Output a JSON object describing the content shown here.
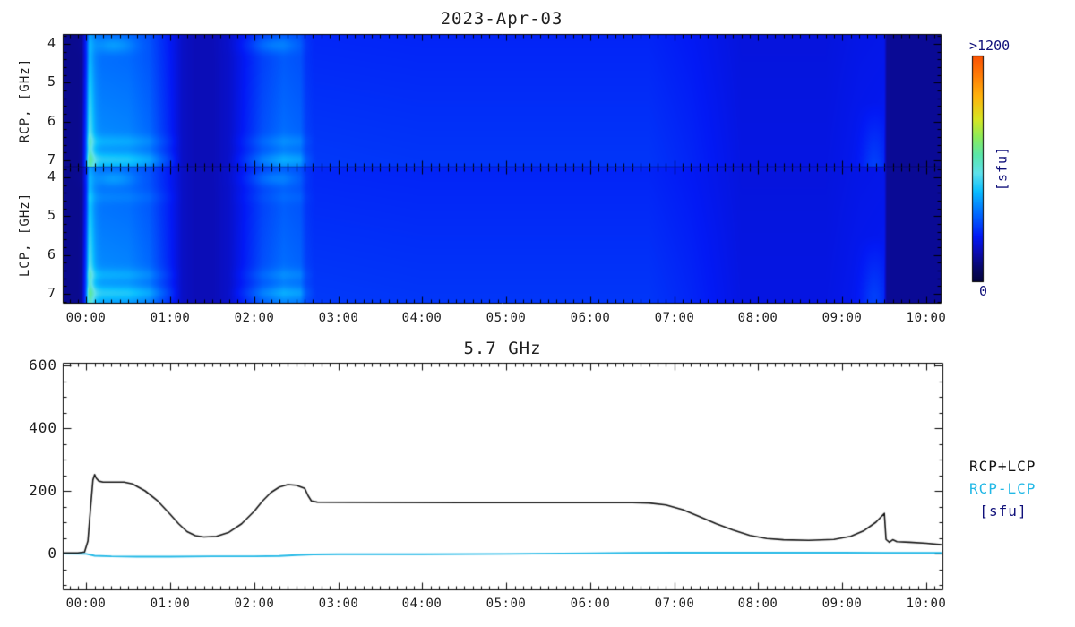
{
  "page": {
    "background": "#ffffff",
    "text_color": "#1f1f1f"
  },
  "chart_data": [
    {
      "type": "heatmap",
      "title": "2023-Apr-03",
      "description_visible": "dual-panel radio dynamic spectrum, RCP and LCP polarization, 4-7 GHz vs time",
      "panels": [
        {
          "ylabel": "RCP, [GHz]",
          "y_ticks": [
            4,
            5,
            6,
            7
          ],
          "y_range_ghz": [
            3.75,
            7.16
          ]
        },
        {
          "ylabel": "LCP, [GHz]",
          "y_ticks": [
            4,
            5,
            6,
            7
          ],
          "y_range_ghz": [
            3.75,
            7.23
          ]
        }
      ],
      "x_ticks": [
        {
          "hour": 0,
          "label": "00:00"
        },
        {
          "hour": 1,
          "label": "01:00"
        },
        {
          "hour": 2,
          "label": "02:00"
        },
        {
          "hour": 3,
          "label": "03:00"
        },
        {
          "hour": 4,
          "label": "04:00"
        },
        {
          "hour": 5,
          "label": "05:00"
        },
        {
          "hour": 6,
          "label": "06:00"
        },
        {
          "hour": 7,
          "label": "07:00"
        },
        {
          "hour": 8,
          "label": "08:00"
        },
        {
          "hour": 9,
          "label": "09:00"
        },
        {
          "hour": 10,
          "label": "10:00"
        }
      ],
      "x_range_hours": [
        -0.28,
        10.17
      ],
      "x_minor_step_hours": 0.1,
      "colorbar": {
        "max_label": ">1200",
        "min_label": "0",
        "title": "[sfu]",
        "label_color": "#10107a",
        "colormap_stops": [
          [
            0.0,
            [
              4,
              4,
              60
            ]
          ],
          [
            0.06,
            [
              8,
              8,
              105
            ]
          ],
          [
            0.13,
            [
              12,
              12,
              178
            ]
          ],
          [
            0.2,
            [
              2,
              25,
              245
            ]
          ],
          [
            0.3,
            [
              0,
              105,
              255
            ]
          ],
          [
            0.4,
            [
              10,
              190,
              255
            ]
          ],
          [
            0.48,
            [
              95,
              225,
              235
            ]
          ],
          [
            0.56,
            [
              90,
              230,
              170
            ]
          ],
          [
            0.64,
            [
              140,
              235,
              90
            ]
          ],
          [
            0.72,
            [
              215,
              230,
              35
            ]
          ],
          [
            0.82,
            [
              255,
              180,
              12
            ]
          ],
          [
            0.92,
            [
              255,
              120,
              6
            ]
          ],
          [
            1.0,
            [
              250,
              82,
              3
            ]
          ]
        ]
      },
      "brightness_profile": [
        [
          -0.3,
          0.095
        ],
        [
          -0.05,
          0.095
        ],
        [
          0.0,
          0.18
        ],
        [
          0.04,
          0.33
        ],
        [
          0.1,
          0.315
        ],
        [
          0.2,
          0.3
        ],
        [
          0.5,
          0.295
        ],
        [
          0.75,
          0.27
        ],
        [
          1.0,
          0.2
        ],
        [
          1.15,
          0.15
        ],
        [
          1.3,
          0.135
        ],
        [
          1.5,
          0.135
        ],
        [
          1.7,
          0.155
        ],
        [
          1.9,
          0.2
        ],
        [
          2.1,
          0.245
        ],
        [
          2.35,
          0.275
        ],
        [
          2.55,
          0.265
        ],
        [
          2.62,
          0.23
        ],
        [
          2.72,
          0.218
        ],
        [
          4.0,
          0.215
        ],
        [
          6.7,
          0.215
        ],
        [
          7.2,
          0.2
        ],
        [
          7.8,
          0.175
        ],
        [
          8.8,
          0.175
        ],
        [
          9.2,
          0.185
        ],
        [
          9.5,
          0.188
        ],
        [
          9.53,
          0.102
        ],
        [
          10.17,
          0.102
        ]
      ],
      "features": {
        "burst": {
          "time": 0.03,
          "sigma": 0.045,
          "amp": 0.13
        },
        "band_high": {
          "freq": 6.97,
          "sigma": 0.13,
          "amp": 0.085
        },
        "band_mid": {
          "freq": 6.5,
          "sigma": 0.12,
          "amp": 0.045
        },
        "band_top": {
          "freq": 4.02,
          "sigma": 0.15,
          "amp": 0.06,
          "windows": [
            [
              0.33,
              0.18
            ],
            [
              2.22,
              0.22
            ]
          ]
        },
        "band_lcp": {
          "freq": 4.5,
          "sigma": 0.12,
          "amp": 0.025
        },
        "pre_gap_blob": {
          "time": 9.38,
          "sigma": 0.1,
          "amp": 0.05
        },
        "active_end_hour": 2.75
      }
    },
    {
      "type": "line",
      "title": "5.7 GHz",
      "y_ticks": [
        0,
        200,
        400,
        600
      ],
      "y_range": [
        -114,
        609
      ],
      "y_minor_step": 50,
      "units_label": "[sfu]",
      "units_color": "#10107a",
      "series": [
        {
          "name": "RCP+LCP",
          "color": "#121212",
          "points": [
            [
              -0.3,
              2
            ],
            [
              -0.1,
              2
            ],
            [
              -0.02,
              5
            ],
            [
              0.02,
              40
            ],
            [
              0.05,
              140
            ],
            [
              0.08,
              235
            ],
            [
              0.1,
              252
            ],
            [
              0.12,
              240
            ],
            [
              0.15,
              231
            ],
            [
              0.2,
              228
            ],
            [
              0.45,
              228
            ],
            [
              0.55,
              222
            ],
            [
              0.7,
              200
            ],
            [
              0.85,
              168
            ],
            [
              1.0,
              125
            ],
            [
              1.1,
              95
            ],
            [
              1.2,
              70
            ],
            [
              1.3,
              57
            ],
            [
              1.4,
              53
            ],
            [
              1.55,
              55
            ],
            [
              1.7,
              68
            ],
            [
              1.85,
              95
            ],
            [
              2.0,
              135
            ],
            [
              2.1,
              168
            ],
            [
              2.2,
              195
            ],
            [
              2.3,
              212
            ],
            [
              2.4,
              220
            ],
            [
              2.5,
              218
            ],
            [
              2.6,
              208
            ],
            [
              2.64,
              185
            ],
            [
              2.68,
              168
            ],
            [
              2.75,
              164
            ],
            [
              3.5,
              163
            ],
            [
              4.5,
              162
            ],
            [
              5.5,
              162
            ],
            [
              6.5,
              162
            ],
            [
              6.7,
              161
            ],
            [
              6.9,
              155
            ],
            [
              7.1,
              140
            ],
            [
              7.3,
              118
            ],
            [
              7.5,
              95
            ],
            [
              7.7,
              75
            ],
            [
              7.9,
              58
            ],
            [
              8.1,
              48
            ],
            [
              8.3,
              44
            ],
            [
              8.6,
              42
            ],
            [
              8.9,
              45
            ],
            [
              9.1,
              55
            ],
            [
              9.25,
              72
            ],
            [
              9.4,
              100
            ],
            [
              9.5,
              128
            ],
            [
              9.52,
              45
            ],
            [
              9.56,
              36
            ],
            [
              9.6,
              44
            ],
            [
              9.65,
              38
            ],
            [
              9.8,
              36
            ],
            [
              10.0,
              33
            ],
            [
              10.19,
              28
            ]
          ]
        },
        {
          "name": "RCP-LCP",
          "color": "#22b8e6",
          "points": [
            [
              -0.3,
              0
            ],
            [
              0.0,
              -1
            ],
            [
              0.1,
              -7
            ],
            [
              0.3,
              -9
            ],
            [
              0.6,
              -10
            ],
            [
              1.0,
              -10
            ],
            [
              1.5,
              -9
            ],
            [
              2.0,
              -9
            ],
            [
              2.3,
              -8
            ],
            [
              2.5,
              -5
            ],
            [
              2.7,
              -3
            ],
            [
              3.0,
              -2
            ],
            [
              4.0,
              -2
            ],
            [
              5.0,
              -1
            ],
            [
              6.0,
              1
            ],
            [
              6.5,
              2
            ],
            [
              7.0,
              3
            ],
            [
              8.0,
              3
            ],
            [
              9.0,
              3
            ],
            [
              9.5,
              2
            ],
            [
              10.19,
              2
            ]
          ]
        }
      ]
    }
  ]
}
